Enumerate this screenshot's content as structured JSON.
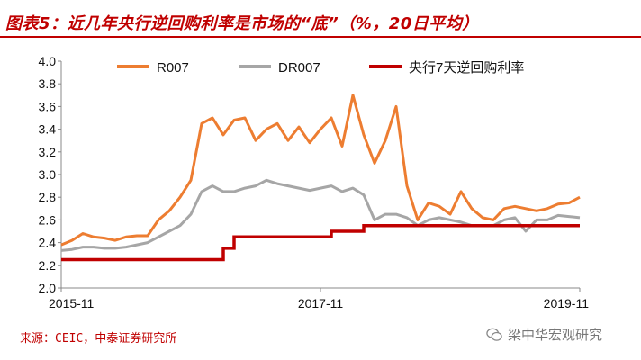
{
  "title": "图表5：近几年央行逆回购利率是市场的“底”（%，20日平均）",
  "source": "来源：CEIC，中泰证券研究所",
  "watermark": "梁中华宏观研究",
  "colors": {
    "R007": "#ed7d31",
    "DR007": "#a6a6a6",
    "policy": "#c00000",
    "accent": "#c00000"
  },
  "chart_data": {
    "type": "line",
    "title": "",
    "xlabel": "",
    "ylabel": "",
    "ylim": [
      2.0,
      4.0
    ],
    "yticks": [
      2.0,
      2.2,
      2.4,
      2.6,
      2.8,
      3.0,
      3.2,
      3.4,
      3.6,
      3.8,
      4.0
    ],
    "xlim": [
      "2015-11",
      "2019-11"
    ],
    "xticks": [
      "2015-11",
      "2017-11",
      "2019-11"
    ],
    "grid": false,
    "legend": "top",
    "series": [
      {
        "name": "R007",
        "x": [
          "2015-11",
          "2015-12",
          "2016-01",
          "2016-02",
          "2016-03",
          "2016-04",
          "2016-05",
          "2016-06",
          "2016-07",
          "2016-08",
          "2016-09",
          "2016-10",
          "2016-11",
          "2016-12",
          "2017-01",
          "2017-02",
          "2017-03",
          "2017-04",
          "2017-05",
          "2017-06",
          "2017-07",
          "2017-08",
          "2017-09",
          "2017-10",
          "2017-11",
          "2017-12",
          "2018-01",
          "2018-02",
          "2018-03",
          "2018-04",
          "2018-05",
          "2018-06",
          "2018-07",
          "2018-08",
          "2018-09",
          "2018-10",
          "2018-11",
          "2018-12",
          "2019-01",
          "2019-02",
          "2019-03",
          "2019-04",
          "2019-05",
          "2019-06",
          "2019-07",
          "2019-08",
          "2019-09",
          "2019-10",
          "2019-11"
        ],
        "values": [
          2.38,
          2.42,
          2.48,
          2.45,
          2.44,
          2.42,
          2.45,
          2.46,
          2.46,
          2.6,
          2.68,
          2.8,
          2.95,
          3.45,
          3.5,
          3.35,
          3.48,
          3.5,
          3.3,
          3.4,
          3.45,
          3.3,
          3.42,
          3.28,
          3.4,
          3.5,
          3.25,
          3.7,
          3.35,
          3.1,
          3.3,
          3.6,
          2.9,
          2.6,
          2.75,
          2.72,
          2.65,
          2.85,
          2.7,
          2.62,
          2.6,
          2.7,
          2.72,
          2.7,
          2.68,
          2.7,
          2.74,
          2.75,
          2.8
        ]
      },
      {
        "name": "DR007",
        "x": [
          "2015-11",
          "2015-12",
          "2016-01",
          "2016-02",
          "2016-03",
          "2016-04",
          "2016-05",
          "2016-06",
          "2016-07",
          "2016-08",
          "2016-09",
          "2016-10",
          "2016-11",
          "2016-12",
          "2017-01",
          "2017-02",
          "2017-03",
          "2017-04",
          "2017-05",
          "2017-06",
          "2017-07",
          "2017-08",
          "2017-09",
          "2017-10",
          "2017-11",
          "2017-12",
          "2018-01",
          "2018-02",
          "2018-03",
          "2018-04",
          "2018-05",
          "2018-06",
          "2018-07",
          "2018-08",
          "2018-09",
          "2018-10",
          "2018-11",
          "2018-12",
          "2019-01",
          "2019-02",
          "2019-03",
          "2019-04",
          "2019-05",
          "2019-06",
          "2019-07",
          "2019-08",
          "2019-09",
          "2019-10",
          "2019-11"
        ],
        "values": [
          2.33,
          2.34,
          2.36,
          2.36,
          2.35,
          2.35,
          2.36,
          2.38,
          2.4,
          2.45,
          2.5,
          2.55,
          2.65,
          2.85,
          2.9,
          2.85,
          2.85,
          2.88,
          2.9,
          2.95,
          2.92,
          2.9,
          2.88,
          2.86,
          2.88,
          2.9,
          2.85,
          2.88,
          2.82,
          2.6,
          2.65,
          2.65,
          2.62,
          2.55,
          2.6,
          2.62,
          2.6,
          2.58,
          2.55,
          2.55,
          2.55,
          2.6,
          2.62,
          2.5,
          2.6,
          2.6,
          2.64,
          2.63,
          2.62
        ]
      },
      {
        "name": "央行7天逆回购利率",
        "steps": [
          {
            "from": "2015-11",
            "value": 2.25
          },
          {
            "from": "2017-02",
            "value": 2.35
          },
          {
            "from": "2017-03",
            "value": 2.45
          },
          {
            "from": "2017-12",
            "value": 2.5
          },
          {
            "from": "2018-03",
            "value": 2.55
          },
          {
            "from": "2019-11",
            "value": 2.55
          }
        ]
      }
    ]
  }
}
